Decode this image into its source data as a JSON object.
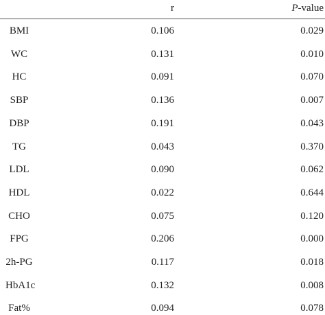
{
  "table": {
    "header": {
      "r": "r",
      "p_italic": "P",
      "p_rest": "-value"
    },
    "rows": [
      [
        "BMI",
        "0.106",
        "0.029"
      ],
      [
        "WC",
        "0.131",
        "0.010"
      ],
      [
        "HC",
        "0.091",
        "0.070"
      ],
      [
        "SBP",
        "0.136",
        "0.007"
      ],
      [
        "DBP",
        "0.191",
        "0.043"
      ],
      [
        "TG",
        "0.043",
        "0.370"
      ],
      [
        "LDL",
        "0.090",
        "0.062"
      ],
      [
        "HDL",
        "0.022",
        "0.644"
      ],
      [
        "CHO",
        "0.075",
        "0.120"
      ],
      [
        "FPG",
        "0.206",
        "0.000"
      ],
      [
        "2h-PG",
        "0.117",
        "0.018"
      ],
      [
        "HbA1c",
        "0.132",
        "0.008"
      ],
      [
        "Fat%",
        "0.094",
        "0.078"
      ]
    ]
  }
}
